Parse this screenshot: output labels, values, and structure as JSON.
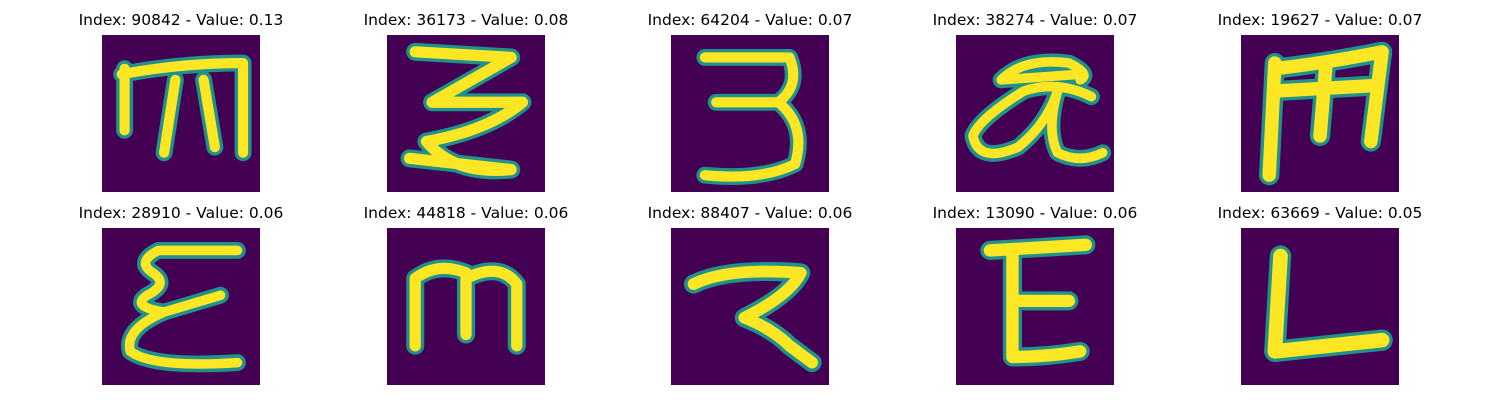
{
  "colors": {
    "background": "#440154",
    "mid": "#21918c",
    "bright": "#fde725",
    "teal": "#2a788e",
    "green": "#5ec962"
  },
  "samples": [
    {
      "title": "Index: 90842 - Value: 0.13",
      "glyph": "m-glyph"
    },
    {
      "title": "Index: 36173 - Value: 0.08",
      "glyph": "three-z-glyph"
    },
    {
      "title": "Index: 64204 - Value: 0.07",
      "glyph": "three-glyph"
    },
    {
      "title": "Index: 38274 - Value: 0.07",
      "glyph": "alpha-glyph"
    },
    {
      "title": "Index: 19627 - Value: 0.07",
      "glyph": "m-glyph"
    },
    {
      "title": "Index: 28910 - Value: 0.06",
      "glyph": "epsilon-glyph"
    },
    {
      "title": "Index: 44818 - Value: 0.06",
      "glyph": "m-glyph"
    },
    {
      "title": "Index: 88407 - Value: 0.06",
      "glyph": "r-glyph"
    },
    {
      "title": "Index: 13090 - Value: 0.06",
      "glyph": "e-glyph"
    },
    {
      "title": "Index: 63669 - Value: 0.05",
      "glyph": "l-glyph"
    }
  ]
}
